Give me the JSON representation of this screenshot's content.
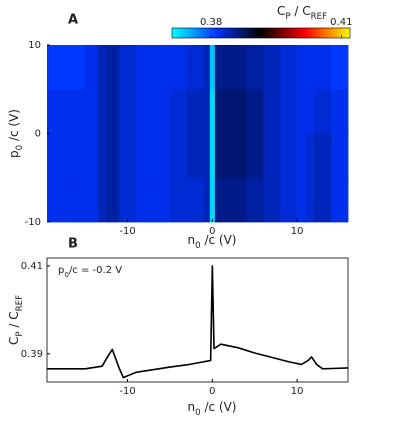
{
  "chart_data": [
    {
      "type": "heatmap",
      "panel_label": "A",
      "colorbar_label": [
        "C",
        "P",
        " / C",
        "REF"
      ],
      "xlabel": [
        "n",
        "0",
        " /c (V)"
      ],
      "ylabel": [
        "p",
        "0",
        " /c (V)"
      ],
      "x_edges": [
        -19.5,
        -17,
        -15,
        -13.5,
        -12.5,
        -11,
        -9,
        -7,
        -5,
        -3,
        -1,
        -0.3,
        0.3,
        2,
        4,
        6,
        8,
        10,
        11,
        12,
        14,
        16
      ],
      "y_edges": [
        -10,
        -5,
        0,
        5,
        10
      ],
      "z": [
        [
          0.382,
          0.382,
          0.382,
          0.384,
          0.385,
          0.383,
          0.382,
          0.382,
          0.383,
          0.383,
          0.384,
          0.373,
          0.386,
          0.386,
          0.385,
          0.384,
          0.383,
          0.382,
          0.383,
          0.384,
          0.382
        ],
        [
          0.382,
          0.382,
          0.382,
          0.384,
          0.385,
          0.383,
          0.382,
          0.382,
          0.383,
          0.384,
          0.384,
          0.373,
          0.387,
          0.387,
          0.386,
          0.384,
          0.383,
          0.382,
          0.383,
          0.384,
          0.382
        ],
        [
          0.382,
          0.382,
          0.382,
          0.384,
          0.385,
          0.383,
          0.382,
          0.382,
          0.383,
          0.384,
          0.384,
          0.373,
          0.387,
          0.387,
          0.386,
          0.384,
          0.383,
          0.382,
          0.382,
          0.383,
          0.382
        ],
        [
          0.381,
          0.381,
          0.382,
          0.384,
          0.385,
          0.383,
          0.382,
          0.382,
          0.382,
          0.383,
          0.384,
          0.374,
          0.386,
          0.386,
          0.385,
          0.384,
          0.383,
          0.382,
          0.382,
          0.382,
          0.381
        ]
      ],
      "clim": [
        0.371,
        0.412
      ],
      "cticks": [
        0.38,
        0.41
      ],
      "colormap": [
        "#00ffff",
        "#0033ff",
        "#000000",
        "#ff0000",
        "#ffff00"
      ],
      "xlim": [
        -19.5,
        16
      ],
      "ylim": [
        -10,
        10
      ],
      "xticks": [
        -10,
        0,
        10
      ],
      "yticks": [
        -10,
        0,
        10
      ]
    },
    {
      "type": "line",
      "panel_label": "B",
      "annotation": [
        "p",
        "0",
        "/c = -0.2 V"
      ],
      "xlabel": [
        "n",
        "0",
        " /c (V)"
      ],
      "ylabel": [
        "C",
        "P",
        " / C",
        "REF"
      ],
      "x": [
        -19.5,
        -17,
        -15,
        -13,
        -12.3,
        -11.8,
        -11,
        -10.5,
        -9,
        -7,
        -5,
        -3,
        -1,
        -0.2,
        0,
        0.2,
        1,
        3,
        5,
        7,
        9,
        10.5,
        11.3,
        11.7,
        12.3,
        13,
        14.5,
        16
      ],
      "values": [
        0.3866,
        0.3866,
        0.3866,
        0.3872,
        0.3895,
        0.391,
        0.3868,
        0.3846,
        0.3858,
        0.3864,
        0.387,
        0.3875,
        0.3882,
        0.3885,
        0.41,
        0.3912,
        0.3922,
        0.3914,
        0.3902,
        0.3892,
        0.3882,
        0.3876,
        0.3885,
        0.3893,
        0.3876,
        0.3866,
        0.3867,
        0.3868
      ],
      "color": "#000000",
      "xlim": [
        -19.5,
        16
      ],
      "ylim": [
        0.3836,
        0.4118
      ],
      "xticks": [
        -10,
        0,
        10
      ],
      "yticks": [
        0.39,
        0.41
      ]
    }
  ]
}
